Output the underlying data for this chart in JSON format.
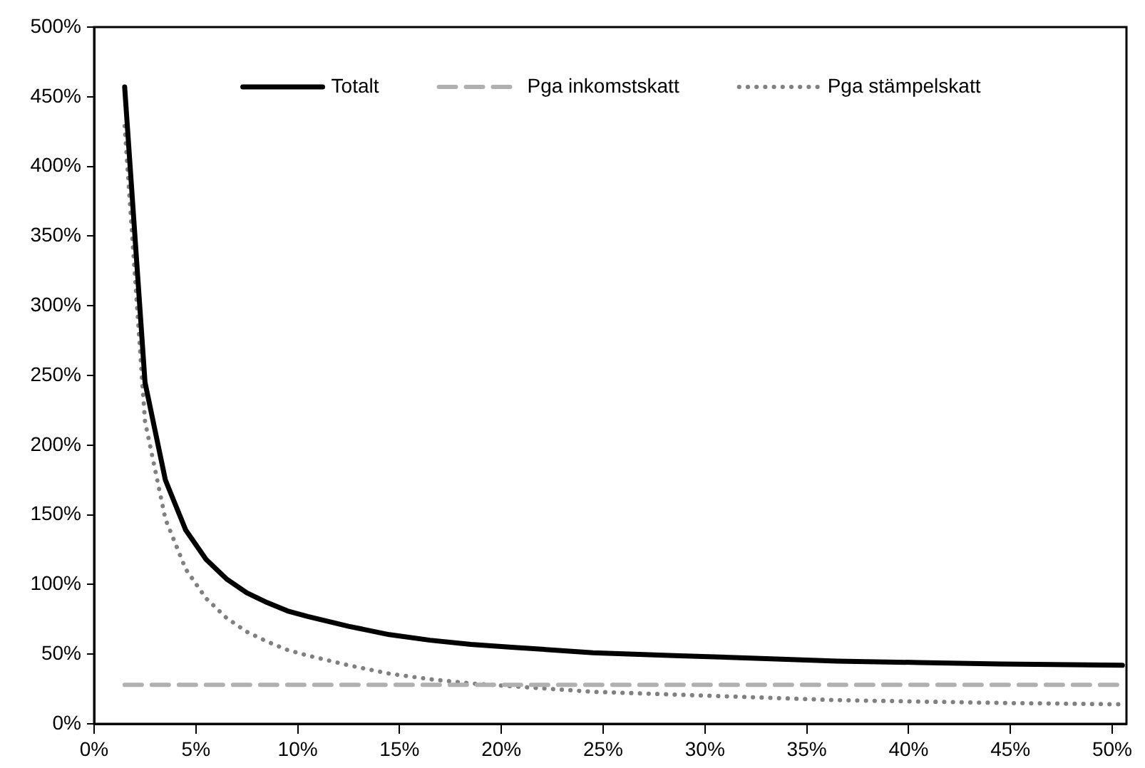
{
  "chart_data": {
    "type": "line",
    "x": [
      1.5,
      2.5,
      3.5,
      4.5,
      5.5,
      6.5,
      7.5,
      8.5,
      9.5,
      10.5,
      12.5,
      14.5,
      16.5,
      18.5,
      20.5,
      24.5,
      28.5,
      32.5,
      36.5,
      40.5,
      44.5,
      50.5
    ],
    "series": [
      {
        "name": "Totalt",
        "color": "#000000",
        "line_style": "solid",
        "values": [
          457,
          245,
          175,
          139,
          118,
          104,
          94,
          87,
          81,
          77,
          70,
          64,
          60,
          57,
          55,
          51,
          49,
          47,
          45,
          44,
          43,
          42
        ]
      },
      {
        "name": "Pga inkomstskatt",
        "color": "#b0b0b0",
        "line_style": "dashed",
        "values": [
          28,
          28,
          28,
          28,
          28,
          28,
          28,
          28,
          28,
          28,
          28,
          28,
          28,
          28,
          28,
          28,
          28,
          28,
          28,
          28,
          28,
          28
        ]
      },
      {
        "name": "Pga stämpelskatt",
        "color": "#808080",
        "line_style": "dotted",
        "values": [
          429,
          217,
          147,
          111,
          90,
          76,
          66,
          59,
          53,
          49,
          42,
          36,
          32,
          29,
          27,
          23,
          21,
          19,
          17,
          16,
          15,
          14
        ]
      }
    ],
    "xlim": [
      0,
      50.7
    ],
    "xticks": [
      {
        "value": 0,
        "label": "0%"
      },
      {
        "value": 5,
        "label": "5%"
      },
      {
        "value": 10,
        "label": "10%"
      },
      {
        "value": 15,
        "label": "15%"
      },
      {
        "value": 20,
        "label": "20%"
      },
      {
        "value": 25,
        "label": "25%"
      },
      {
        "value": 30,
        "label": "30%"
      },
      {
        "value": 35,
        "label": "35%"
      },
      {
        "value": 40,
        "label": "40%"
      },
      {
        "value": 45,
        "label": "45%"
      },
      {
        "value": 50,
        "label": "50%"
      }
    ],
    "ylim": [
      0,
      500
    ],
    "yticks": [
      {
        "value": 0,
        "label": "0%"
      },
      {
        "value": 50,
        "label": "50%"
      },
      {
        "value": 100,
        "label": "100%"
      },
      {
        "value": 150,
        "label": "150%"
      },
      {
        "value": 200,
        "label": "200%"
      },
      {
        "value": 250,
        "label": "250%"
      },
      {
        "value": 300,
        "label": "300%"
      },
      {
        "value": 350,
        "label": "350%"
      },
      {
        "value": 400,
        "label": "400%"
      },
      {
        "value": 450,
        "label": "450%"
      },
      {
        "value": 500,
        "label": "500%"
      }
    ],
    "grid": false,
    "legend": "top"
  }
}
